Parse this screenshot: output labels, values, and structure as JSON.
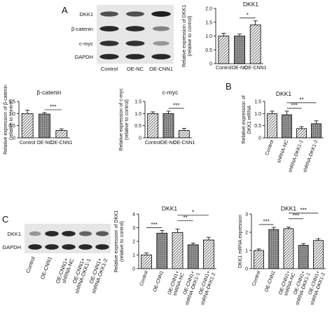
{
  "panel_letters": [
    "A",
    "B",
    "C"
  ],
  "blots": [
    {
      "lanes": [
        "Control",
        "OE-NC",
        "OE-CNN1"
      ],
      "rows": [
        {
          "label": "DKK1",
          "intensity": [
            0.7,
            0.7,
            0.95
          ]
        },
        {
          "label": "β-catenin",
          "intensity": [
            0.9,
            0.88,
            0.45
          ]
        },
        {
          "label": "c-myc",
          "intensity": [
            0.85,
            0.85,
            0.35
          ]
        },
        {
          "label": "GAPDH",
          "intensity": [
            0.9,
            0.9,
            0.9
          ]
        }
      ]
    },
    {
      "lanes": [
        "Control",
        "OE-CNN1",
        "OE-CNN1+ shRNA-NC",
        "OE-CNN1+ shRNA-DKK1-1",
        "OE-CNN1+ shRNA-DKK1-2"
      ],
      "rows": [
        {
          "label": "DKK1",
          "intensity": [
            0.35,
            0.9,
            0.9,
            0.6,
            0.65
          ]
        },
        {
          "label": "GAPDH",
          "intensity": [
            0.9,
            0.9,
            0.9,
            0.9,
            0.9
          ]
        }
      ]
    }
  ],
  "chart_data": [
    {
      "type": "bar",
      "title": "DKK1",
      "xlabel": "",
      "ylabel": "Relative expression of DKK1 (relative to control)",
      "categories": [
        "Control",
        "OE-NC",
        "OE-CNN1"
      ],
      "values": [
        1.0,
        1.0,
        1.4
      ],
      "errors": [
        0.1,
        0.07,
        0.15
      ],
      "ylim": [
        0,
        2.0
      ],
      "yticks": [
        "0",
        "0.5",
        "1.0",
        "1.5",
        "2.0"
      ],
      "fills": [
        "hatch",
        "grid",
        "hatch"
      ],
      "significance": [
        {
          "from": 1,
          "to": 2,
          "label": "*"
        }
      ]
    },
    {
      "type": "bar",
      "title": "β-catenin",
      "xlabel": "",
      "ylabel": "Relative expression of β-catenin (relative to control)",
      "categories": [
        "Control",
        "OE-NC",
        "OE-CNN1"
      ],
      "values": [
        1.0,
        0.98,
        0.3
      ],
      "errors": [
        0.14,
        0.06,
        0.07
      ],
      "ylim": [
        0,
        1.5
      ],
      "yticks": [
        "0",
        "0.5",
        "1.0",
        "1.5"
      ],
      "fills": [
        "hatch",
        "grid",
        "hatch"
      ],
      "significance": [
        {
          "from": 1,
          "to": 2,
          "label": "***"
        }
      ]
    },
    {
      "type": "bar",
      "title": "c-myc",
      "xlabel": "",
      "ylabel": "Relative expression of c-myc (relative to control)",
      "categories": [
        "Control",
        "OE-NC",
        "OE-CNN1"
      ],
      "values": [
        1.0,
        1.0,
        0.3
      ],
      "errors": [
        0.07,
        0.1,
        0.09
      ],
      "ylim": [
        0,
        1.5
      ],
      "yticks": [
        "0",
        "0.5",
        "1.0",
        "1.5"
      ],
      "fills": [
        "hatch",
        "grid",
        "hatch"
      ],
      "significance": [
        {
          "from": 1,
          "to": 2,
          "label": "***"
        }
      ]
    },
    {
      "type": "bar",
      "title": "DKK1",
      "xlabel": "",
      "ylabel": "Relative expression of DKK1 mRNA",
      "categories": [
        "Control",
        "shRNA-NC",
        "shRNA-DKK1-1",
        "shRNA-DKK1-2"
      ],
      "values": [
        1.0,
        0.95,
        0.38,
        0.58
      ],
      "errors": [
        0.1,
        0.15,
        0.08,
        0.12
      ],
      "ylim": [
        0,
        1.5
      ],
      "yticks": [
        "0",
        "0.5",
        "1.0",
        "1.5"
      ],
      "fills": [
        "hatch",
        "grid",
        "hatch",
        "grid"
      ],
      "significance": [
        {
          "from": 1,
          "to": 2,
          "label": "***"
        },
        {
          "from": 1,
          "to": 3,
          "label": "**"
        }
      ]
    },
    {
      "type": "bar",
      "title": "DKK1",
      "xlabel": "",
      "ylabel": "Relative expression of DKK1 (relative to control)",
      "categories": [
        "Control",
        "OE-CNN1",
        "OE-CNN1+ shRNA-NC",
        "OE-CNN1+ shRNA-DKK1-1",
        "OE-CNN1+ shRNA-DKK1-2"
      ],
      "values": [
        1.0,
        2.6,
        2.65,
        1.75,
        2.1
      ],
      "errors": [
        0.15,
        0.2,
        0.25,
        0.12,
        0.2
      ],
      "ylim": [
        0,
        4
      ],
      "yticks": [
        "0",
        "1",
        "2",
        "3",
        "4"
      ],
      "fills": [
        "hatch",
        "grid",
        "hatch",
        "grid",
        "hatch"
      ],
      "significance": [
        {
          "from": 0,
          "to": 1,
          "label": "***"
        },
        {
          "from": 2,
          "to": 3,
          "label": "**"
        },
        {
          "from": 2,
          "to": 4,
          "label": "*"
        }
      ]
    },
    {
      "type": "bar",
      "title": "DKK1",
      "xlabel": "",
      "ylabel": "DKK1 mRNA expression",
      "categories": [
        "Control",
        "OE-CNN1",
        "OE-CNN1+ shRNA-NC",
        "OE-CNN1+ shRNA-DKK1-1",
        "OE-CNN1+ shRNA-DKK1-2"
      ],
      "values": [
        1.0,
        2.15,
        2.2,
        1.28,
        1.55
      ],
      "errors": [
        0.08,
        0.12,
        0.08,
        0.1,
        0.1
      ],
      "ylim": [
        0,
        3
      ],
      "yticks": [
        "0",
        "1",
        "2",
        "3"
      ],
      "fills": [
        "hatch",
        "grid",
        "hatch",
        "grid",
        "hatch"
      ],
      "significance": [
        {
          "from": 0,
          "to": 1,
          "label": "***"
        },
        {
          "from": 2,
          "to": 3,
          "label": "***"
        },
        {
          "from": 2,
          "to": 4,
          "label": "***"
        }
      ]
    }
  ]
}
